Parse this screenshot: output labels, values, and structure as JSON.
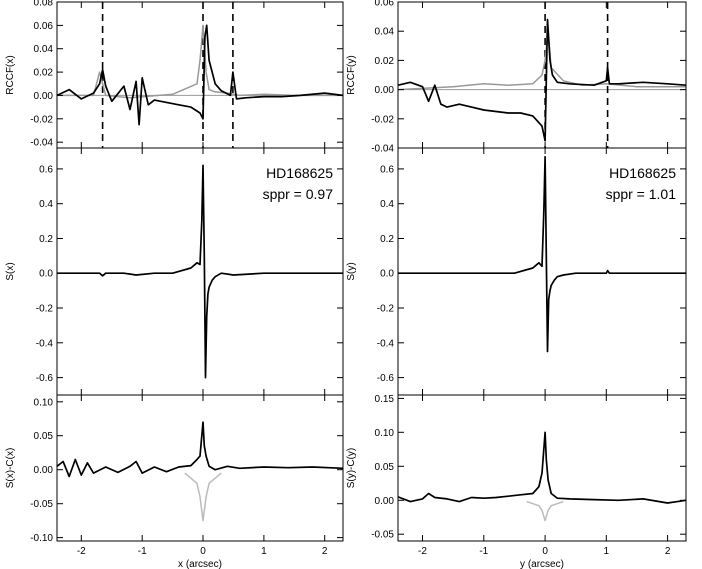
{
  "chart_data": [
    {
      "type": "line",
      "panel": "x-rccf",
      "ylabel": "RCCF(x)",
      "ylim": [
        -0.045,
        0.08
      ],
      "xlim": [
        -2.4,
        2.3
      ],
      "yticks": [
        -0.04,
        -0.02,
        0.0,
        0.02,
        0.04,
        0.06,
        0.08
      ],
      "ytick_labels": [
        "-0.04",
        "-0.02",
        "0.00",
        "0.02",
        "0.04",
        "0.06",
        "0.08"
      ],
      "xticks": [
        -2,
        -1,
        0,
        1,
        2
      ],
      "vlines": [
        -1.65,
        0.0,
        0.49
      ],
      "hline": 0,
      "series": [
        {
          "color": "#999999",
          "x": [
            -2.4,
            -1.8,
            -1.7,
            -1.6,
            -1.2,
            -0.5,
            -0.1,
            -0.05,
            0.0,
            0.05,
            0.1,
            0.2,
            0.4,
            0.6,
            1.0,
            1.5,
            2.3
          ],
          "y": [
            0.0,
            0.0,
            0.02,
            0.0,
            -0.002,
            0.001,
            0.01,
            0.03,
            0.06,
            0.02,
            0.005,
            0.003,
            0.002,
            0.0,
            0.001,
            0.0,
            0.0
          ]
        },
        {
          "color": "#000000",
          "x": [
            -2.4,
            -2.2,
            -2.0,
            -1.8,
            -1.7,
            -1.65,
            -1.6,
            -1.5,
            -1.3,
            -1.2,
            -1.1,
            -1.05,
            -1.0,
            -0.9,
            -0.8,
            -0.6,
            -0.4,
            -0.2,
            -0.05,
            0.0,
            0.03,
            0.06,
            0.1,
            0.2,
            0.3,
            0.45,
            0.49,
            0.55,
            0.7,
            1.0,
            1.3,
            1.6,
            2.0,
            2.3
          ],
          "y": [
            0.0,
            0.005,
            -0.003,
            0.002,
            0.01,
            0.022,
            0.008,
            -0.005,
            0.008,
            -0.012,
            0.012,
            -0.025,
            0.015,
            -0.008,
            -0.004,
            -0.006,
            -0.008,
            -0.01,
            -0.015,
            -0.02,
            0.05,
            0.06,
            0.03,
            0.01,
            0.004,
            0.0,
            0.02,
            -0.003,
            -0.002,
            -0.001,
            -0.001,
            0.0,
            0.002,
            0.0
          ]
        }
      ]
    },
    {
      "type": "line",
      "panel": "x-signal",
      "ylabel": "S(x)",
      "annotation": [
        "HD168625",
        "sppr = 0.97"
      ],
      "ylim": [
        -0.7,
        0.72
      ],
      "xlim": [
        -2.4,
        2.3
      ],
      "yticks": [
        -0.6,
        -0.4,
        -0.2,
        0.0,
        0.2,
        0.4,
        0.6
      ],
      "ytick_labels": [
        "-0.6",
        "-0.4",
        "-0.2",
        "0.0",
        "0.2",
        "0.4",
        "0.6"
      ],
      "xticks": [
        -2,
        -1,
        0,
        1,
        2
      ],
      "series": [
        {
          "color": "#000000",
          "x": [
            -2.4,
            -2.0,
            -1.7,
            -1.65,
            -1.6,
            -1.3,
            -1.1,
            -0.8,
            -0.5,
            -0.2,
            -0.1,
            -0.05,
            -0.02,
            0.0,
            0.02,
            0.04,
            0.06,
            0.08,
            0.1,
            0.15,
            0.2,
            0.3,
            0.5,
            1.0,
            1.5,
            2.0,
            2.3
          ],
          "y": [
            0.0,
            0.0,
            0.0,
            -0.015,
            0.0,
            0.0,
            -0.01,
            0.0,
            0.0,
            0.03,
            0.06,
            0.05,
            0.3,
            0.62,
            0.1,
            -0.6,
            -0.25,
            -0.12,
            -0.08,
            -0.04,
            -0.02,
            0.0,
            -0.01,
            0.0,
            0.0,
            0.0,
            0.0
          ]
        }
      ]
    },
    {
      "type": "line",
      "panel": "x-residual",
      "ylabel": "S(x)-C(x)",
      "xlabel": "x (arcsec)",
      "ylim": [
        -0.105,
        0.11
      ],
      "xlim": [
        -2.4,
        2.3
      ],
      "yticks": [
        -0.1,
        -0.05,
        0.0,
        0.05,
        0.1
      ],
      "ytick_labels": [
        "-0.10",
        "-0.05",
        "0.00",
        "0.05",
        "0.10"
      ],
      "xticks": [
        -2,
        -1,
        0,
        1,
        2
      ],
      "xtick_labels": [
        "-2",
        "-1",
        "0",
        "1",
        "2"
      ],
      "series": [
        {
          "color": "#bbbbbb",
          "x": [
            -0.3,
            -0.1,
            -0.05,
            0.0,
            0.05,
            0.1,
            0.3
          ],
          "y": [
            -0.005,
            -0.02,
            -0.04,
            -0.075,
            -0.04,
            -0.02,
            -0.005
          ]
        },
        {
          "color": "#000000",
          "x": [
            -2.4,
            -2.3,
            -2.2,
            -2.1,
            -2.0,
            -1.9,
            -1.8,
            -1.6,
            -1.4,
            -1.2,
            -1.1,
            -1.0,
            -0.8,
            -0.6,
            -0.4,
            -0.2,
            -0.1,
            -0.05,
            0.0,
            0.02,
            0.05,
            0.1,
            0.2,
            0.4,
            0.6,
            1.0,
            1.4,
            1.8,
            2.3
          ],
          "y": [
            0.005,
            0.012,
            -0.01,
            0.015,
            -0.008,
            0.01,
            -0.005,
            0.004,
            -0.004,
            0.005,
            0.012,
            -0.005,
            0.004,
            -0.003,
            0.004,
            0.006,
            0.015,
            0.02,
            0.07,
            0.035,
            0.02,
            0.005,
            0.0,
            0.005,
            0.002,
            0.004,
            0.003,
            0.004,
            0.002
          ]
        }
      ]
    },
    {
      "type": "line",
      "panel": "y-rccf",
      "ylabel": "RCCF(y)",
      "ylim": [
        -0.04,
        0.06
      ],
      "xlim": [
        -2.4,
        2.3
      ],
      "yticks": [
        -0.04,
        -0.02,
        0.0,
        0.02,
        0.04,
        0.06
      ],
      "ytick_labels": [
        "-0.04",
        "-0.02",
        "0.00",
        "0.02",
        "0.04",
        "0.06"
      ],
      "xticks": [
        -2,
        -1,
        0,
        1,
        2
      ],
      "vlines": [
        0.0,
        1.02
      ],
      "hline": 0,
      "series": [
        {
          "color": "#999999",
          "x": [
            -2.4,
            -1.5,
            -1.0,
            -0.6,
            -0.2,
            -0.05,
            0.0,
            0.05,
            0.1,
            0.3,
            0.6,
            1.0,
            1.5,
            2.3
          ],
          "y": [
            0.0,
            0.002,
            0.004,
            0.003,
            0.004,
            0.01,
            0.02,
            0.04,
            0.015,
            0.006,
            0.003,
            0.004,
            0.002,
            0.002
          ]
        },
        {
          "color": "#000000",
          "x": [
            -2.4,
            -2.2,
            -2.0,
            -1.9,
            -1.8,
            -1.7,
            -1.6,
            -1.4,
            -1.2,
            -1.0,
            -0.8,
            -0.6,
            -0.4,
            -0.2,
            -0.05,
            0.0,
            0.04,
            0.08,
            0.12,
            0.2,
            0.4,
            0.8,
            1.0,
            1.02,
            1.05,
            1.2,
            1.6,
            2.0,
            2.3
          ],
          "y": [
            0.003,
            0.005,
            0.002,
            -0.008,
            0.003,
            -0.01,
            -0.012,
            -0.01,
            -0.012,
            -0.014,
            -0.015,
            -0.016,
            -0.016,
            -0.018,
            -0.025,
            -0.035,
            0.048,
            0.02,
            0.01,
            0.005,
            0.004,
            0.003,
            0.006,
            0.015,
            0.004,
            0.004,
            0.005,
            0.004,
            0.003
          ]
        }
      ]
    },
    {
      "type": "line",
      "panel": "y-signal",
      "ylabel": "S(y)",
      "annotation": [
        "HD168625",
        "sppr = 1.01"
      ],
      "ylim": [
        -0.7,
        0.72
      ],
      "xlim": [
        -2.4,
        2.3
      ],
      "yticks": [
        -0.6,
        -0.4,
        -0.2,
        0.0,
        0.2,
        0.4,
        0.6
      ],
      "ytick_labels": [
        "-0.6",
        "-0.4",
        "-0.2",
        "0.0",
        "0.2",
        "0.4",
        "0.6"
      ],
      "xticks": [
        -2,
        -1,
        0,
        1,
        2
      ],
      "series": [
        {
          "color": "#000000",
          "x": [
            -2.4,
            -2.0,
            -1.5,
            -1.0,
            -0.5,
            -0.2,
            -0.1,
            -0.05,
            -0.02,
            0.0,
            0.02,
            0.04,
            0.06,
            0.08,
            0.1,
            0.15,
            0.2,
            0.3,
            0.5,
            1.0,
            1.02,
            1.05,
            1.5,
            2.0,
            2.3
          ],
          "y": [
            0.0,
            0.0,
            0.0,
            0.0,
            0.0,
            0.03,
            0.06,
            0.04,
            0.35,
            0.67,
            0.1,
            -0.45,
            -0.15,
            -0.1,
            -0.07,
            -0.04,
            -0.02,
            -0.01,
            0.0,
            0.0,
            0.015,
            0.0,
            0.0,
            0.0,
            0.0
          ]
        }
      ]
    },
    {
      "type": "line",
      "panel": "y-residual",
      "ylabel": "S(y)-C(y)",
      "xlabel": "y (arcsec)",
      "ylim": [
        -0.06,
        0.155
      ],
      "xlim": [
        -2.4,
        2.3
      ],
      "yticks": [
        -0.05,
        0.0,
        0.05,
        0.1,
        0.15
      ],
      "ytick_labels": [
        "-0.05",
        "0.00",
        "0.05",
        "0.10",
        "0.15"
      ],
      "xticks": [
        -2,
        -1,
        0,
        1,
        2
      ],
      "xtick_labels": [
        "-2",
        "-1",
        "0",
        "1",
        "2"
      ],
      "series": [
        {
          "color": "#bbbbbb",
          "x": [
            -0.3,
            -0.1,
            -0.05,
            0.0,
            0.05,
            0.1,
            0.3
          ],
          "y": [
            -0.002,
            -0.008,
            -0.015,
            -0.03,
            -0.015,
            -0.008,
            -0.002
          ]
        },
        {
          "color": "#000000",
          "x": [
            -2.4,
            -2.2,
            -2.0,
            -1.9,
            -1.8,
            -1.6,
            -1.4,
            -1.2,
            -1.0,
            -0.8,
            -0.6,
            -0.4,
            -0.2,
            -0.1,
            -0.05,
            0.0,
            0.02,
            0.05,
            0.1,
            0.2,
            0.4,
            0.8,
            1.2,
            1.6,
            2.0,
            2.3
          ],
          "y": [
            0.005,
            -0.002,
            0.002,
            0.01,
            0.004,
            0.002,
            -0.002,
            0.004,
            0.003,
            0.004,
            0.006,
            0.008,
            0.01,
            0.02,
            0.04,
            0.1,
            0.06,
            0.03,
            0.01,
            0.003,
            0.002,
            0.001,
            0.0,
            0.002,
            -0.004,
            0.0
          ]
        }
      ]
    }
  ]
}
